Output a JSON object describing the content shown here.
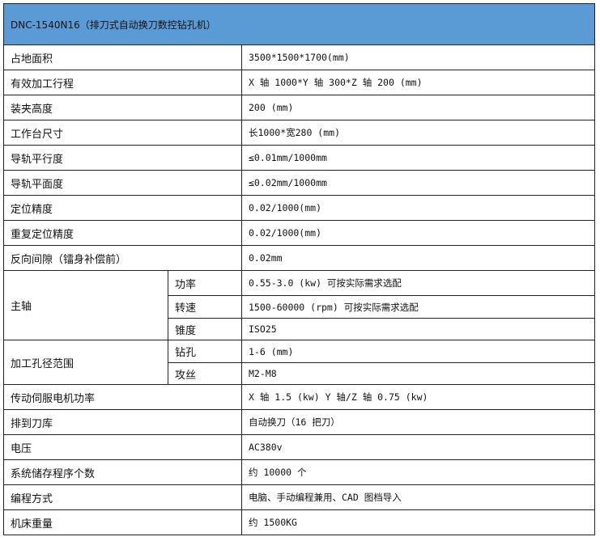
{
  "title": "DNC-1540N16（排刀式自动换刀数控钻孔机）",
  "rows": [
    {
      "label": "占地面积",
      "value": "3500*1500*1700(mm)"
    },
    {
      "label": "有效加工行程",
      "value": "X 轴 1000*Y 轴 300*Z 轴 200 (mm)"
    },
    {
      "label": "装夹高度",
      "value": "200 (mm)"
    },
    {
      "label": "工作台尺寸",
      "value": "长1000*宽280 (mm)"
    },
    {
      "label": "导轨平行度",
      "value": "≤0.01mm/1000mm"
    },
    {
      "label": "导轨平面度",
      "value": "≤0.02mm/1000mm"
    },
    {
      "label": "定位精度",
      "value": "0.02/1000(mm)"
    },
    {
      "label": "重复定位精度",
      "value": "0.02/1000(mm)"
    },
    {
      "label": "反向间隙（镭身补偿前）",
      "value": "0.02mm"
    }
  ],
  "spindle": {
    "label": "主轴",
    "subs": [
      {
        "label": "功率",
        "value": "0.55-3.0 (kw) 可按实际需求选配"
      },
      {
        "label": "转速",
        "value": "1500-60000 (rpm) 可按实际需求选配"
      },
      {
        "label": "锥度",
        "value": "ISO25"
      }
    ]
  },
  "hole": {
    "label": "加工孔径范围",
    "subs": [
      {
        "label": "钻孔",
        "value": "1-6 (mm)"
      },
      {
        "label": "攻丝",
        "value": "M2-M8"
      }
    ]
  },
  "rows2": [
    {
      "label": "传动伺服电机功率",
      "value": "X 轴 1.5 (kw)  Y 轴/Z 轴 0.75 (kw)"
    },
    {
      "label": "排到刀库",
      "value": "自动换刀（16 把刀）"
    },
    {
      "label": "电压",
      "value": "AC380v"
    },
    {
      "label": "系统储存程序个数",
      "value": "约 10000 个"
    },
    {
      "label": "编程方式",
      "value": "电脑、手动编程兼用、CAD 图档导入"
    },
    {
      "label": "机床重量",
      "value": "约 1500KG"
    }
  ]
}
